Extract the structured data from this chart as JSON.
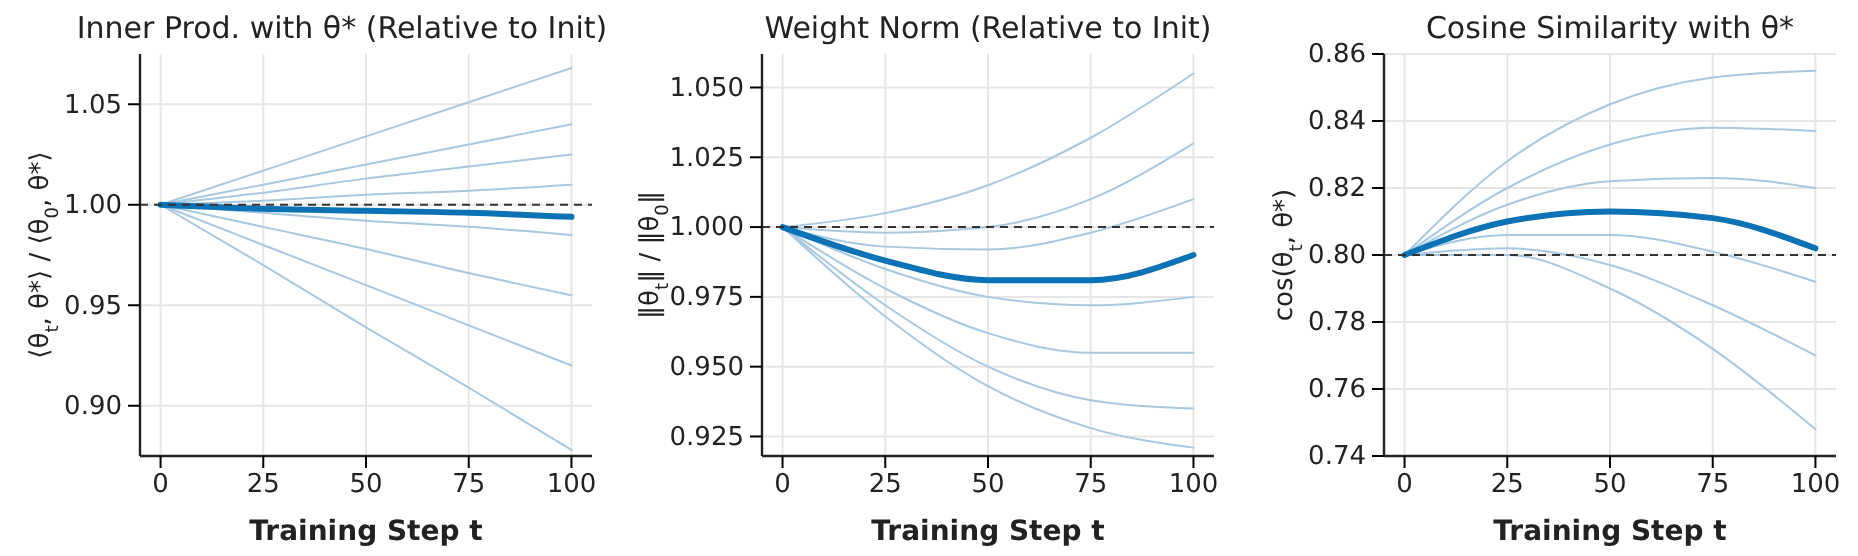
{
  "chart_data": [
    {
      "type": "line",
      "title": "Inner Prod. with θ* (Relative to Init)",
      "xlabel": "Training Step t",
      "ylabel": "⟨θ$_{t}$, θ*⟩ / ⟨θ$_{0}$, θ*⟩",
      "x": [
        0,
        25,
        50,
        75,
        100
      ],
      "xlim": [
        -5,
        105
      ],
      "xticks": [
        0,
        25,
        50,
        75,
        100
      ],
      "ylim": [
        0.875,
        1.075
      ],
      "yticks": [
        {
          "value": 0.9,
          "label": "0.90"
        },
        0.95,
        {
          "value": 1,
          "label": "1.00"
        },
        1.05
      ],
      "grid": true,
      "ref_lines": [
        {
          "axis": "y",
          "value": 1.0,
          "line_style": "dashed",
          "color": "#333333"
        }
      ],
      "series": [
        {
          "color": "#a6c8e0",
          "values": [
            1,
            1.017,
            1.034,
            1.051,
            1.068
          ]
        },
        {
          "color": "#a6c8e0",
          "values": [
            1,
            1.01,
            1.02,
            1.03,
            1.04
          ]
        },
        {
          "color": "#a6c8e0",
          "values": [
            1,
            1.006,
            1.013,
            1.019,
            1.025
          ]
        },
        {
          "color": "#a6c8e0",
          "values": [
            1,
            1.002,
            1.005,
            1.007,
            1.01
          ]
        },
        {
          "color": "#a6c8e0",
          "values": [
            1,
            0.996,
            0.992,
            0.989,
            0.985
          ]
        },
        {
          "color": "#a6c8e0",
          "values": [
            1,
            0.989,
            0.978,
            0.966,
            0.955
          ]
        },
        {
          "color": "#a6c8e0",
          "values": [
            1,
            0.98,
            0.96,
            0.94,
            0.92
          ]
        },
        {
          "color": "#a6c8e0",
          "values": [
            1,
            0.97,
            0.939,
            0.909,
            0.878
          ]
        },
        {
          "color": "#0b72b5",
          "values": [
            1,
            0.998,
            0.997,
            0.996,
            0.994
          ]
        }
      ]
    },
    {
      "type": "line",
      "title": "Weight Norm (Relative to Init)",
      "xlabel": "Training Step t",
      "ylabel": "‖θ$_{t}$‖ / ‖θ$_{0}$‖",
      "x": [
        0,
        25,
        50,
        75,
        100
      ],
      "xlim": [
        -5,
        105
      ],
      "xticks": [
        0,
        25,
        50,
        75,
        100
      ],
      "ylim": [
        0.918,
        1.062
      ],
      "yticks": [
        0.925,
        {
          "value": 0.95,
          "label": "0.950"
        },
        0.975,
        {
          "value": 1,
          "label": "1.000"
        },
        1.025,
        {
          "value": 1.05,
          "label": "1.050"
        }
      ],
      "grid": true,
      "ref_lines": [
        {
          "axis": "y",
          "value": 1.0,
          "line_style": "dashed",
          "color": "#333333"
        }
      ],
      "series": [
        {
          "color": "#a6c8e0",
          "values": [
            1,
            1.005,
            1.015,
            1.032,
            1.055
          ]
        },
        {
          "color": "#a6c8e0",
          "values": [
            1,
            0.998,
            1.0,
            1.01,
            1.03
          ]
        },
        {
          "color": "#a6c8e0",
          "values": [
            1,
            0.993,
            0.992,
            0.998,
            1.01
          ]
        },
        {
          "color": "#a6c8e0",
          "values": [
            1,
            0.985,
            0.975,
            0.972,
            0.975
          ]
        },
        {
          "color": "#a6c8e0",
          "values": [
            1,
            0.978,
            0.962,
            0.955,
            0.955
          ]
        },
        {
          "color": "#a6c8e0",
          "values": [
            1,
            0.972,
            0.95,
            0.938,
            0.935
          ]
        },
        {
          "color": "#a6c8e0",
          "values": [
            1,
            0.968,
            0.943,
            0.928,
            0.921
          ]
        },
        {
          "color": "#0b72b5",
          "values": [
            1,
            0.988,
            0.981,
            0.981,
            0.99
          ]
        }
      ]
    },
    {
      "type": "line",
      "title": "Cosine Similarity with θ*",
      "xlabel": "Training Step t",
      "ylabel": "cos(θ$_{t}$, θ*)",
      "x": [
        0,
        25,
        50,
        75,
        100
      ],
      "xlim": [
        -5,
        105
      ],
      "xticks": [
        0,
        25,
        50,
        75,
        100
      ],
      "ylim": [
        0.74,
        0.86
      ],
      "yticks": [
        0.74,
        0.76,
        0.78,
        {
          "value": 0.8,
          "label": "0.80"
        },
        0.82,
        0.84,
        0.86
      ],
      "grid": true,
      "ref_lines": [
        {
          "axis": "y",
          "value": 0.8,
          "line_style": "dashed",
          "color": "#333333"
        }
      ],
      "series": [
        {
          "color": "#a6c8e0",
          "values": [
            0.8,
            0.828,
            0.845,
            0.853,
            0.855
          ]
        },
        {
          "color": "#a6c8e0",
          "values": [
            0.8,
            0.82,
            0.833,
            0.838,
            0.837
          ]
        },
        {
          "color": "#a6c8e0",
          "values": [
            0.8,
            0.815,
            0.822,
            0.823,
            0.82
          ]
        },
        {
          "color": "#a6c8e0",
          "values": [
            0.8,
            0.806,
            0.806,
            0.801,
            0.792
          ]
        },
        {
          "color": "#a6c8e0",
          "values": [
            0.8,
            0.802,
            0.797,
            0.785,
            0.77
          ]
        },
        {
          "color": "#a6c8e0",
          "values": [
            0.8,
            0.8,
            0.79,
            0.772,
            0.748
          ]
        },
        {
          "color": "#0b72b5",
          "values": [
            0.8,
            0.81,
            0.813,
            0.811,
            0.802
          ]
        }
      ]
    }
  ]
}
